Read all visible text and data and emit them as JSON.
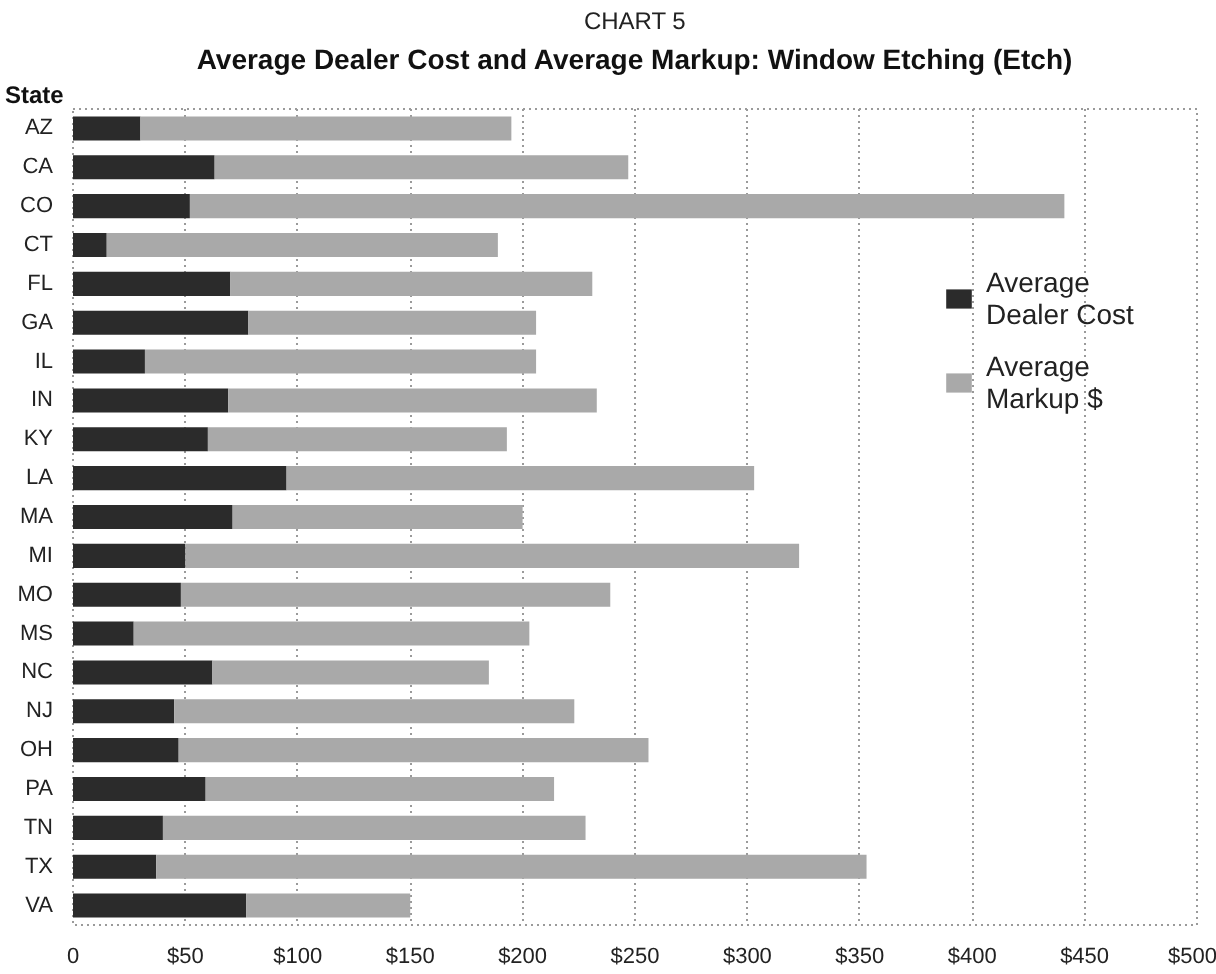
{
  "chart_data": {
    "type": "bar",
    "orientation": "horizontal",
    "stacked": true,
    "title": "CHART 5",
    "subtitle": "Average Dealer Cost and Average Markup: Window Etching (Etch)",
    "ylabel": "State",
    "categories": [
      "AZ",
      "CA",
      "CO",
      "CT",
      "FL",
      "GA",
      "IL",
      "IN",
      "KY",
      "LA",
      "MA",
      "MI",
      "MO",
      "MS",
      "NC",
      "NJ",
      "OH",
      "PA",
      "TN",
      "TX",
      "VA"
    ],
    "series": [
      {
        "name": "Average Dealer Cost",
        "color": "#2b2b2b",
        "values": [
          30,
          63,
          52,
          15,
          70,
          78,
          32,
          69,
          60,
          95,
          71,
          50,
          48,
          27,
          62,
          45,
          47,
          59,
          40,
          37,
          77
        ]
      },
      {
        "name": "Average Markup $",
        "color": "#a9a9a9",
        "values": [
          165,
          184,
          389,
          174,
          161,
          128,
          174,
          164,
          133,
          208,
          129,
          273,
          191,
          176,
          123,
          178,
          209,
          155,
          188,
          316,
          73
        ]
      }
    ],
    "xlim": [
      0,
      500
    ],
    "xticks": [
      0,
      {
        "value": 50,
        "label": "$50"
      },
      {
        "value": 100,
        "label": "$100"
      },
      {
        "value": 150,
        "label": "$150"
      },
      {
        "value": 200,
        "label": "$200"
      },
      {
        "value": 250,
        "label": "$250"
      },
      {
        "value": 300,
        "label": "$300"
      },
      {
        "value": 350,
        "label": "$350"
      },
      {
        "value": 400,
        "label": "$400"
      },
      {
        "value": 450,
        "label": "$450"
      },
      {
        "value": 500,
        "label": "$500"
      }
    ],
    "grid": "x",
    "legend": "right"
  }
}
